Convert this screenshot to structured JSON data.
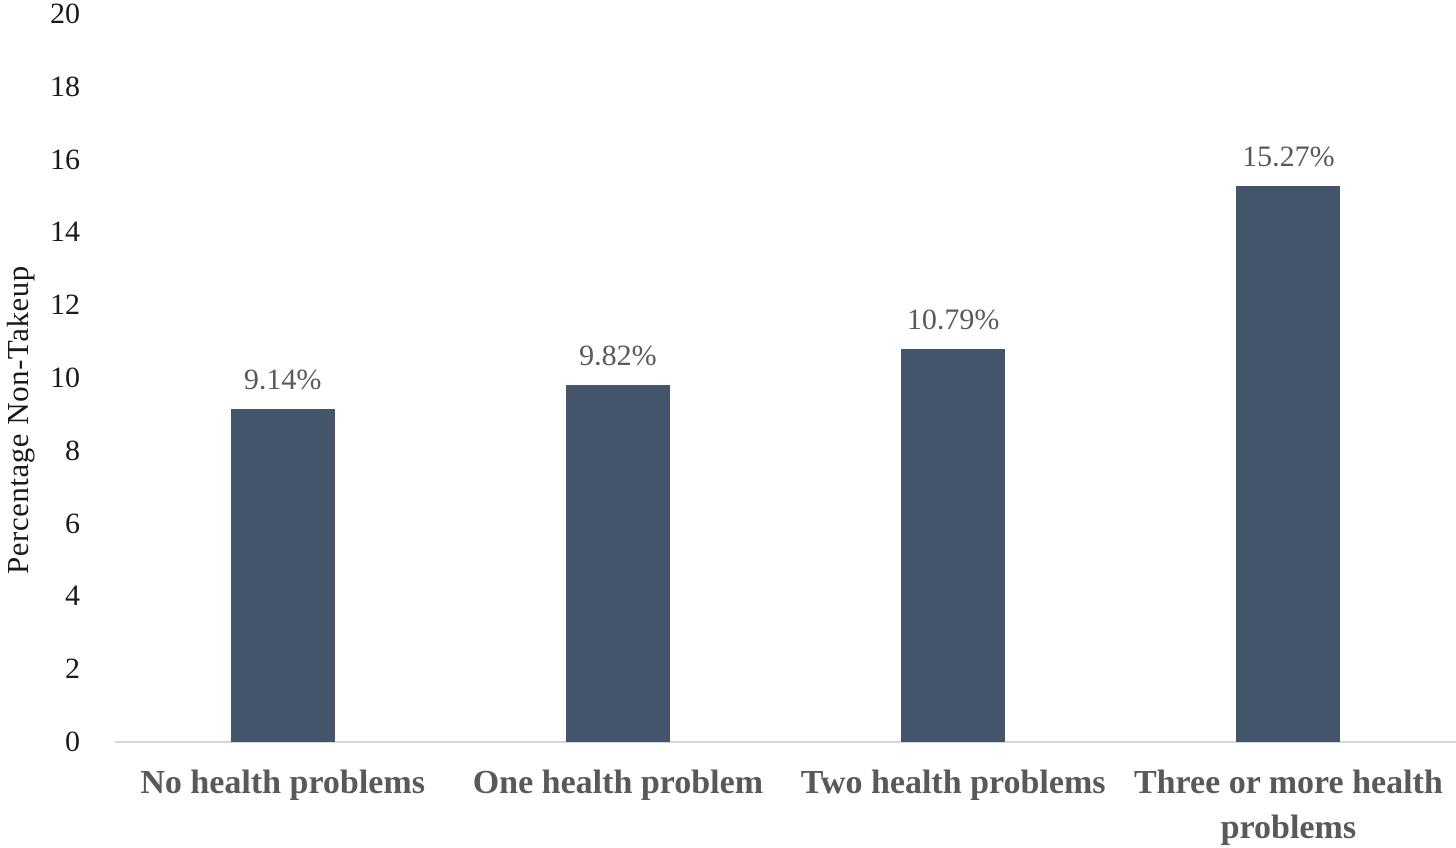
{
  "chart_data": {
    "type": "bar",
    "categories": [
      "No health problems",
      "One health problem",
      "Two health problems",
      "Three or more health problems"
    ],
    "values": [
      9.14,
      9.82,
      10.79,
      15.27
    ],
    "data_labels": [
      "9.14%",
      "9.82%",
      "10.79%",
      "15.27%"
    ],
    "ylabel": "Percentage Non-Takeup",
    "xlabel": "",
    "ylim": [
      0,
      20
    ],
    "yticks": [
      0,
      2,
      4,
      6,
      8,
      10,
      12,
      14,
      16,
      18,
      20
    ],
    "grid": false,
    "legend": "none",
    "colors": {
      "bar_fill": "#44546A",
      "axis_line": "#D6D6D6",
      "tick_label": "#1A1A1A",
      "data_label": "#5A5A5A",
      "category_label": "#595959",
      "background": "#FFFFFF"
    }
  }
}
